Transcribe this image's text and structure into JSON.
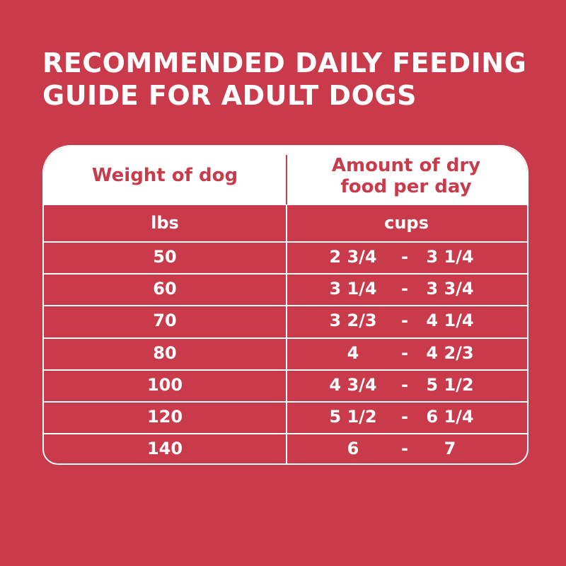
{
  "header": {
    "title": "RECOMMENDED DAILY FEEDING GUIDE FOR ADULT DOGS"
  },
  "table": {
    "columns": [
      "Weight of dog",
      "Amount of dry food per day"
    ],
    "units": [
      "lbs",
      "cups"
    ],
    "rows": [
      [
        "50",
        "2 3/4",
        "-",
        "3 1/4"
      ],
      [
        "60",
        "3 1/4",
        "-",
        "3 3/4"
      ],
      [
        "70",
        "3 2/3",
        "-",
        "4 1/4"
      ],
      [
        "80",
        "4",
        "-",
        "4 2/3"
      ],
      [
        "100",
        "4 3/4",
        "-",
        "5 1/2"
      ],
      [
        "120",
        "5 1/2",
        "-",
        "6 1/4"
      ],
      [
        "140",
        "6",
        "-",
        "7"
      ]
    ]
  }
}
